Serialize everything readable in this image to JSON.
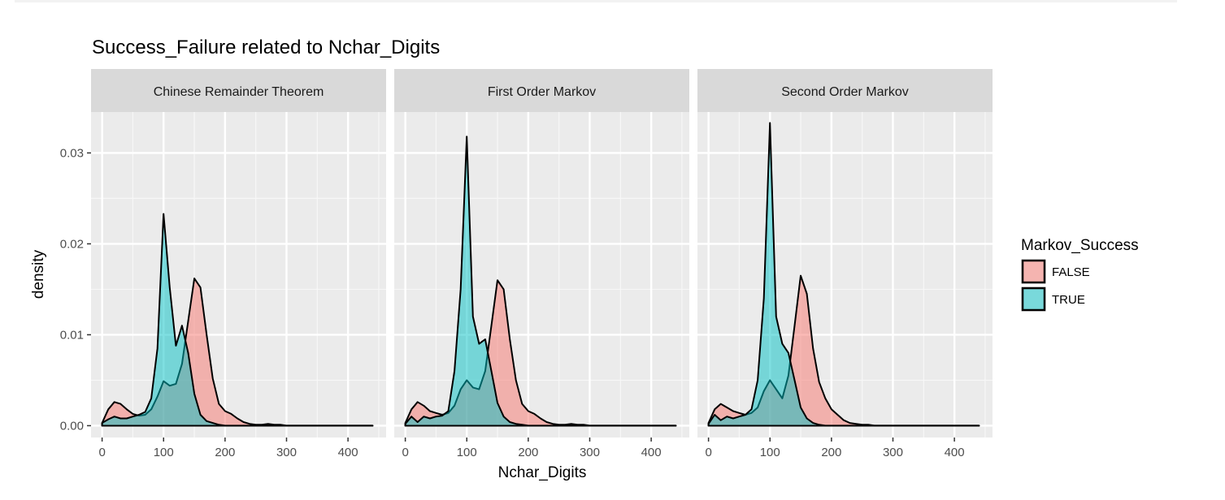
{
  "chart_data": {
    "type": "area",
    "title": "Success_Failure related to Nchar_Digits",
    "xlabel": "Nchar_Digits",
    "ylabel": "density",
    "xlim": [
      -18,
      462
    ],
    "ylim": [
      -0.0013,
      0.0345
    ],
    "x_ticks": [
      "0",
      "100",
      "200",
      "300",
      "400"
    ],
    "y_ticks": [
      "0.00",
      "0.01",
      "0.02",
      "0.03"
    ],
    "grid": true,
    "legend": {
      "title": "Markov_Success",
      "position": "right",
      "entries": [
        {
          "label": "FALSE",
          "color": "#F8766D"
        },
        {
          "label": "TRUE",
          "color": "#00BFC4"
        }
      ]
    },
    "x": [
      0,
      10,
      20,
      30,
      40,
      50,
      60,
      70,
      80,
      90,
      100,
      110,
      120,
      130,
      140,
      150,
      160,
      170,
      180,
      190,
      200,
      210,
      220,
      230,
      240,
      250,
      260,
      270,
      280,
      290,
      300,
      320,
      340,
      360,
      380,
      400,
      420,
      440
    ],
    "panels": [
      {
        "name": "Chinese Remainder Theorem",
        "series": [
          {
            "name": "FALSE",
            "values": [
              0.0003,
              0.0018,
              0.0026,
              0.0024,
              0.0018,
              0.0013,
              0.0011,
              0.0012,
              0.0018,
              0.0032,
              0.0049,
              0.0044,
              0.0046,
              0.0068,
              0.0115,
              0.0162,
              0.0152,
              0.01,
              0.0052,
              0.0024,
              0.0016,
              0.0013,
              0.0008,
              0.0004,
              0.0002,
              0.0001,
              0.0001,
              0.0002,
              0.0001,
              0.0001,
              0,
              0,
              0,
              0,
              0,
              0,
              0,
              0
            ]
          },
          {
            "name": "TRUE",
            "values": [
              0.0003,
              0.0007,
              0.001,
              0.0008,
              0.0008,
              0.001,
              0.0012,
              0.0015,
              0.003,
              0.0085,
              0.0233,
              0.0152,
              0.0088,
              0.011,
              0.008,
              0.0035,
              0.0012,
              0.0005,
              0.0003,
              0.0001,
              0,
              0,
              0,
              0,
              0,
              0,
              0,
              0,
              0,
              0,
              0,
              0,
              0,
              0,
              0,
              0,
              0,
              0
            ]
          }
        ]
      },
      {
        "name": "First Order Markov",
        "series": [
          {
            "name": "FALSE",
            "values": [
              0.0003,
              0.0018,
              0.0026,
              0.0022,
              0.0016,
              0.0014,
              0.0012,
              0.0014,
              0.0022,
              0.004,
              0.005,
              0.0042,
              0.004,
              0.006,
              0.011,
              0.016,
              0.015,
              0.0095,
              0.005,
              0.0024,
              0.0016,
              0.0013,
              0.0008,
              0.0004,
              0.0002,
              0.0001,
              0.0001,
              0.0002,
              0.0001,
              0.0001,
              0,
              0,
              0,
              0,
              0,
              0,
              0,
              0
            ]
          },
          {
            "name": "TRUE",
            "values": [
              0.0002,
              0.001,
              0.0004,
              0.001,
              0.0008,
              0.001,
              0.0011,
              0.0016,
              0.006,
              0.015,
              0.0318,
              0.012,
              0.009,
              0.0095,
              0.006,
              0.0025,
              0.001,
              0.0004,
              0.0002,
              0.0001,
              0,
              0,
              0,
              0,
              0,
              0,
              0,
              0,
              0,
              0,
              0,
              0,
              0,
              0,
              0,
              0,
              0,
              0
            ]
          }
        ]
      },
      {
        "name": "Second Order Markov",
        "series": [
          {
            "name": "FALSE",
            "values": [
              0.0003,
              0.0018,
              0.0024,
              0.002,
              0.0016,
              0.0014,
              0.0012,
              0.0014,
              0.002,
              0.0038,
              0.005,
              0.004,
              0.003,
              0.0055,
              0.011,
              0.0165,
              0.0145,
              0.0085,
              0.0048,
              0.003,
              0.0018,
              0.0012,
              0.0006,
              0.0003,
              0.0002,
              0.0001,
              0.0001,
              0,
              0,
              0,
              0,
              0,
              0,
              0,
              0,
              0,
              0,
              0
            ]
          },
          {
            "name": "TRUE",
            "values": [
              0.0002,
              0.0012,
              0.0006,
              0.001,
              0.0008,
              0.001,
              0.0012,
              0.0018,
              0.005,
              0.014,
              0.0333,
              0.012,
              0.009,
              0.008,
              0.005,
              0.002,
              0.0008,
              0.0003,
              0.0001,
              0,
              0,
              0,
              0,
              0,
              0,
              0,
              0,
              0,
              0,
              0,
              0,
              0,
              0,
              0,
              0,
              0,
              0,
              0
            ]
          }
        ]
      }
    ]
  }
}
